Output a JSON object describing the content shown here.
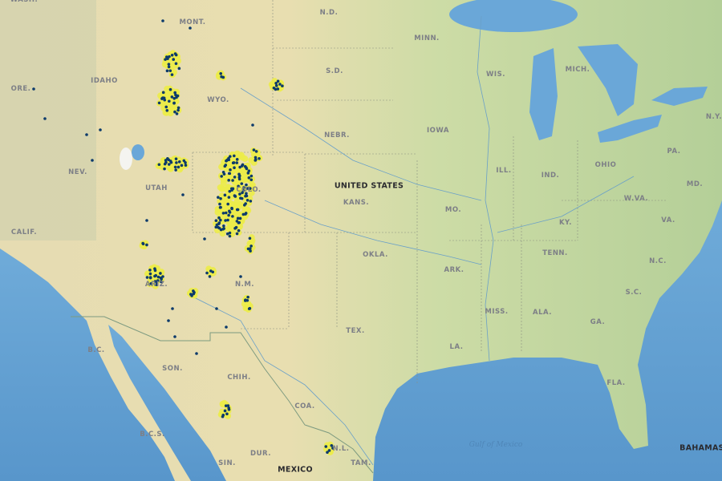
{
  "map": {
    "colors": {
      "land_west": "#e9dfb4",
      "land_east": "#b9d39c",
      "water": "#6aa7d8",
      "ocean_deep": "#5d9dcf",
      "point_fill": "#ecec4a",
      "point_center": "#0c3a6b",
      "border": "#8a8f80"
    },
    "labels": {
      "states": [
        "WASH.",
        "MONT.",
        "N.D.",
        "MINN.",
        "WIS.",
        "MICH.",
        "S.D.",
        "IDAHO",
        "ORE.",
        "WYO.",
        "N.Y.",
        "NEBR.",
        "IOWA",
        "PA.",
        "NEV.",
        "OHIO",
        "ILL.",
        "IND.",
        "MD.",
        "UTAH",
        "COLO.",
        "W.VA.",
        "KANS.",
        "MO.",
        "VA.",
        "CALIF.",
        "KY.",
        "TENN.",
        "OKLA.",
        "N.C.",
        "ARK.",
        "ARIZ.",
        "N.M.",
        "S.C.",
        "MISS.",
        "ALA.",
        "GA.",
        "TEX.",
        "LA.",
        "B.C.",
        "FLA.",
        "SON.",
        "CHIH.",
        "COA.",
        "B.C.S.",
        "N.L.",
        "DUR.",
        "SIN.",
        "TAM."
      ],
      "countries": [
        "UNITED STATES",
        "MEXICO",
        "BAHAMAS"
      ],
      "water": [
        "Gulf of Mexico"
      ]
    },
    "layers": [
      {
        "name": "occurrence-points",
        "fill_color": "#ecec4a",
        "center_color": "#0c3a6b"
      }
    ]
  }
}
